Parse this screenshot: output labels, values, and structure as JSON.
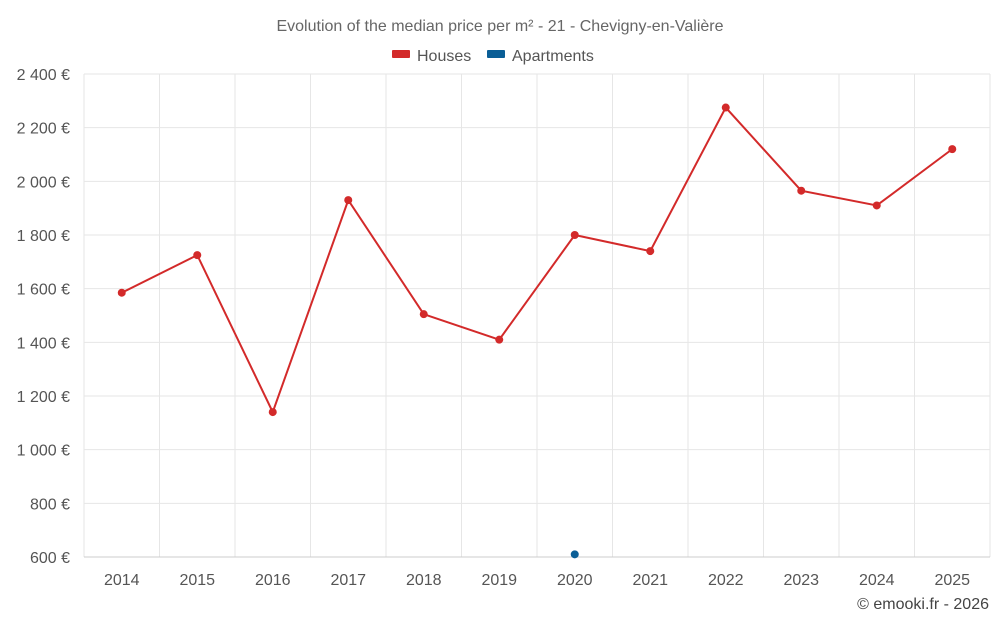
{
  "chart_data": {
    "type": "line",
    "title": "Evolution of the median price per m² - 21 - Chevigny-en-Valière",
    "categories": [
      "2014",
      "2015",
      "2016",
      "2017",
      "2018",
      "2019",
      "2020",
      "2021",
      "2022",
      "2023",
      "2024",
      "2025"
    ],
    "series": [
      {
        "name": "Houses",
        "color": "#d32a2a",
        "values": [
          1585,
          1725,
          1140,
          1930,
          1505,
          1410,
          1800,
          1740,
          2275,
          1965,
          1910,
          2120
        ]
      },
      {
        "name": "Apartments",
        "color": "#0a5e96",
        "values": [
          null,
          null,
          null,
          null,
          null,
          null,
          610,
          null,
          null,
          null,
          null,
          null
        ]
      }
    ],
    "ylim": [
      600,
      2400
    ],
    "yticks": [
      600,
      800,
      1000,
      1200,
      1400,
      1600,
      1800,
      2000,
      2200,
      2400
    ],
    "ytick_labels": [
      "600 €",
      "800 €",
      "1 000 €",
      "1 200 €",
      "1 400 €",
      "1 600 €",
      "1 800 €",
      "2 000 €",
      "2 200 €",
      "2 400 €"
    ],
    "grid": true,
    "legend_position": "top-center"
  },
  "credit": "© emooki.fr - 2026"
}
